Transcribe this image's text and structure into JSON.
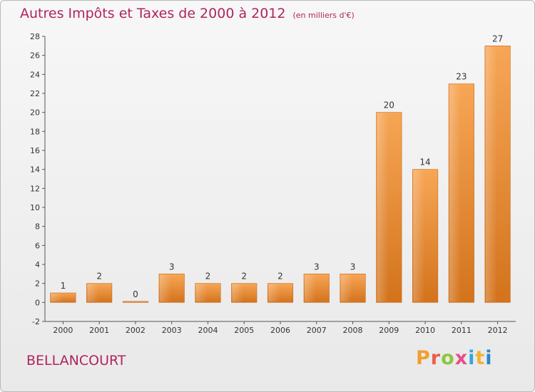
{
  "chart_data": {
    "type": "bar",
    "title": "Autres Impôts et Taxes de 2000 à 2012",
    "unit_note": "(en milliers d'€)",
    "xlabel": "",
    "ylabel": "",
    "categories": [
      "2000",
      "2001",
      "2002",
      "2003",
      "2004",
      "2005",
      "2006",
      "2007",
      "2008",
      "2009",
      "2010",
      "2011",
      "2012"
    ],
    "values": [
      1,
      2,
      0,
      3,
      2,
      2,
      2,
      3,
      3,
      20,
      14,
      23,
      27
    ],
    "ylim": [
      -2,
      28
    ],
    "yticks": [
      -2,
      0,
      2,
      4,
      6,
      8,
      10,
      12,
      14,
      16,
      18,
      20,
      22,
      24,
      26,
      28
    ],
    "grid": false,
    "bar_color": "#f0913a"
  },
  "commune": "BELLANCOURT",
  "logo": {
    "letters": [
      "P",
      "r",
      "o",
      "x",
      "i",
      "t",
      "i"
    ],
    "colors": [
      "#f0a030",
      "#e8604a",
      "#8cc63f",
      "#e84d8a",
      "#2fa8e0",
      "#f3b234",
      "#2d89c8"
    ]
  }
}
